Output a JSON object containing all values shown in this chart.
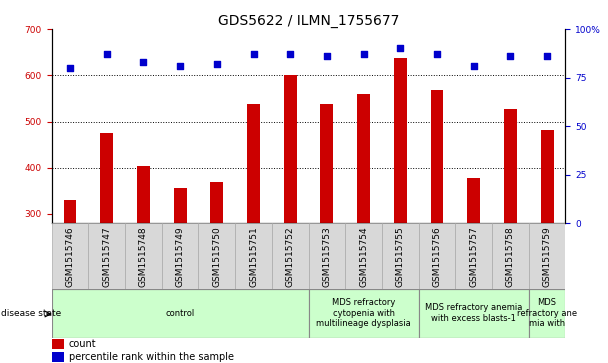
{
  "title": "GDS5622 / ILMN_1755677",
  "samples": [
    "GSM1515746",
    "GSM1515747",
    "GSM1515748",
    "GSM1515749",
    "GSM1515750",
    "GSM1515751",
    "GSM1515752",
    "GSM1515753",
    "GSM1515754",
    "GSM1515755",
    "GSM1515756",
    "GSM1515757",
    "GSM1515758",
    "GSM1515759"
  ],
  "counts": [
    330,
    475,
    403,
    356,
    370,
    537,
    600,
    537,
    560,
    637,
    568,
    378,
    527,
    482
  ],
  "percentiles": [
    80,
    87,
    83,
    81,
    82,
    87,
    87,
    86,
    87,
    90,
    87,
    81,
    86,
    86
  ],
  "bar_color": "#cc0000",
  "dot_color": "#0000cc",
  "ylim_left": [
    280,
    700
  ],
  "ylim_right": [
    0,
    100
  ],
  "yticks_left": [
    300,
    400,
    500,
    600,
    700
  ],
  "yticks_right": [
    0,
    25,
    50,
    75,
    100
  ],
  "grid_values": [
    400,
    500,
    600
  ],
  "ybase": 280,
  "disease_groups": [
    {
      "label": "control",
      "start": 0,
      "end": 7
    },
    {
      "label": "MDS refractory\ncytopenia with\nmultilineage dysplasia",
      "start": 7,
      "end": 10
    },
    {
      "label": "MDS refractory anemia\nwith excess blasts-1",
      "start": 10,
      "end": 13
    },
    {
      "label": "MDS\nrefractory ane\nmia with",
      "start": 13,
      "end": 14
    }
  ],
  "group_color": "#ccffcc",
  "disease_label": "disease state",
  "legend_count_label": "count",
  "legend_pct_label": "percentile rank within the sample",
  "title_fontsize": 10,
  "tick_label_fontsize": 6.5,
  "legend_fontsize": 7,
  "disease_fontsize": 6,
  "bar_width": 0.35,
  "xticklabel_bg": "#d8d8d8"
}
